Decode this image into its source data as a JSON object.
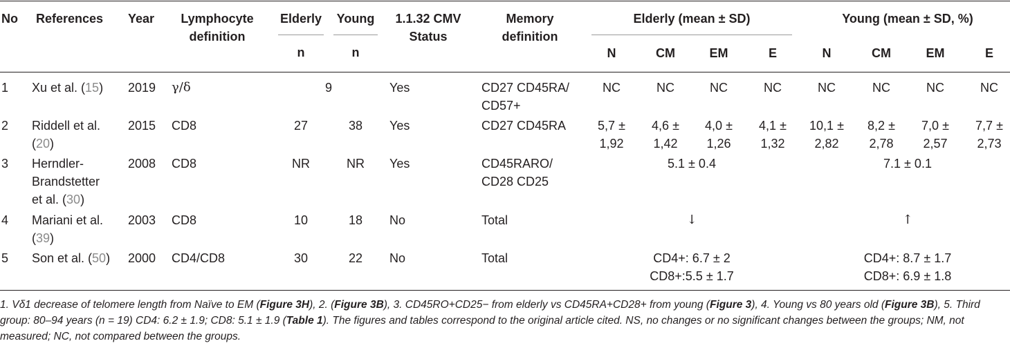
{
  "headers": {
    "no": "No",
    "references": "References",
    "year": "Year",
    "lymphocyte": [
      "Lymphocyte",
      "definition"
    ],
    "elderly": "Elderly",
    "young": "Young",
    "n": "n",
    "cmv": [
      "1.1.32 CMV",
      "Status"
    ],
    "memory": [
      "Memory",
      "definition"
    ],
    "elderly_group": "Elderly (mean ± SD)",
    "young_group": "Young (mean ± SD, %)",
    "subsets": [
      "N",
      "CM",
      "EM",
      "E"
    ]
  },
  "rows": [
    {
      "no": "1",
      "ref_name": "Xu et al. (",
      "ref_num": "15",
      "ref_close": ")",
      "year": "2019",
      "lymph": "γ/δ",
      "n_combined": "9",
      "cmv": "Yes",
      "memory": [
        "CD27 CD45RA/",
        "CD57+"
      ],
      "elderly_vals": [
        "NC",
        "NC",
        "NC",
        "NC"
      ],
      "young_vals": [
        "NC",
        "NC",
        "NC",
        "NC"
      ]
    },
    {
      "no": "2",
      "ref_line1": "Riddell et al.",
      "ref_num": "20",
      "year": "2015",
      "lymph": "CD8",
      "n_elderly": "27",
      "n_young": "38",
      "cmv": "Yes",
      "memory": [
        "CD27 CD45RA"
      ],
      "elderly_vals": [
        [
          "5,7 ±",
          "1,92"
        ],
        [
          "4,6 ±",
          "1,42"
        ],
        [
          "4,0 ±",
          "1,26"
        ],
        [
          "4,1 ±",
          "1,32"
        ]
      ],
      "young_vals": [
        [
          "10,1 ±",
          "2,82"
        ],
        [
          "8,2 ±",
          "2,78"
        ],
        [
          "7,0 ±",
          "2,57"
        ],
        [
          "7,7 ±",
          "2,73"
        ]
      ]
    },
    {
      "no": "3",
      "ref_line1": "Herndler-",
      "ref_line2": "Brandstetter",
      "ref_line3": "et al. (",
      "ref_num": "30",
      "ref_close": ")",
      "year": "2008",
      "lymph": "CD8",
      "n_elderly": "NR",
      "n_young": "NR",
      "cmv": "Yes",
      "memory": [
        "CD45RARO/",
        "CD28 CD25"
      ],
      "elderly_combined": "5.1 ± 0.4",
      "young_combined": "7.1 ± 0.1"
    },
    {
      "no": "4",
      "ref_line1": "Mariani et al.",
      "ref_num": "39",
      "year": "2003",
      "lymph": "CD8",
      "n_elderly": "10",
      "n_young": "18",
      "cmv": "No",
      "memory": [
        "Total"
      ],
      "elderly_combined": "↓",
      "young_combined": "↑"
    },
    {
      "no": "5",
      "ref_name": "Son et al. (",
      "ref_num": "50",
      "ref_close": ")",
      "year": "2000",
      "lymph": "CD4/CD8",
      "n_elderly": "30",
      "n_young": "22",
      "cmv": "No",
      "memory": [
        "Total"
      ],
      "elderly_combined": [
        "CD4+: 6.7 ± 2",
        "CD8+:5.5 ± 1.7"
      ],
      "young_combined": [
        "CD4+: 8.7 ± 1.7",
        "CD8+: 6.9 ± 1.8"
      ]
    }
  ],
  "footnote": {
    "p1": "1. Vδ1 decrease of telomere length from Naïve to EM (",
    "fig3h": "Figure 3H",
    "p2": "), 2. (",
    "fig3b_a": "Figure 3B",
    "p3": "), 3. CD45RO+CD25− from elderly vs CD45RA+CD28+ from young (",
    "fig3": "Figure 3",
    "p4": "), 4. Young vs 80 years old (",
    "fig3b_b": "Figure 3B",
    "p5": "), 5. Third group: 80–94 years (n = 19) CD4: 6.2 ± 1.9; CD8: 5.1 ± 1.9 (",
    "table1": "Table 1",
    "p6": "). The figures and tables correspond to the original article cited. NS, no changes or no significant changes between the groups; NM, not measured; NC, not compared between the groups."
  }
}
